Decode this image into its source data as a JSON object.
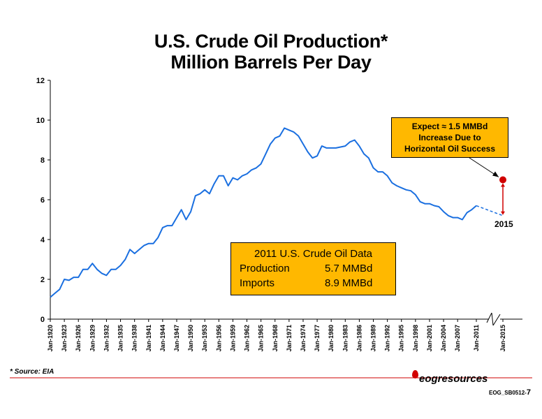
{
  "title_line1": "U.S. Crude Oil Production*",
  "title_line2": "Million Barrels Per Day",
  "chart_data": {
    "type": "line",
    "title": "U.S. Crude Oil Production* Million Barrels Per Day",
    "ylim": [
      0,
      12
    ],
    "yticks": [
      "0",
      "2",
      "4",
      "6",
      "8",
      "10",
      "12"
    ],
    "xtick_labels": [
      "Jan-1920",
      "Jan-1923",
      "Jan-1926",
      "Jan-1929",
      "Jan-1932",
      "Jan-1935",
      "Jan-1938",
      "Jan-1941",
      "Jan-1944",
      "Jan-1947",
      "Jan-1950",
      "Jan-1953",
      "Jan-1956",
      "Jan-1959",
      "Jan-1962",
      "Jan-1965",
      "Jan-1968",
      "Jan-1971",
      "Jan-1974",
      "Jan-1977",
      "Jan-1980",
      "Jan-1983",
      "Jan-1986",
      "Jan-1989",
      "Jan-1992",
      "Jan-1995",
      "Jan-1998",
      "Jan-2001",
      "Jan-2004",
      "Jan-2007",
      "Jan-2011",
      "Jan-2015"
    ],
    "series": [
      {
        "color": "#1a6fe0",
        "x": [
          1920,
          1921,
          1922,
          1923,
          1924,
          1925,
          1926,
          1927,
          1928,
          1929,
          1930,
          1931,
          1932,
          1933,
          1934,
          1935,
          1936,
          1937,
          1938,
          1939,
          1940,
          1941,
          1942,
          1943,
          1944,
          1945,
          1946,
          1947,
          1948,
          1949,
          1950,
          1951,
          1952,
          1953,
          1954,
          1955,
          1956,
          1957,
          1958,
          1959,
          1960,
          1961,
          1962,
          1963,
          1964,
          1965,
          1966,
          1967,
          1968,
          1969,
          1970,
          1971,
          1972,
          1973,
          1974,
          1975,
          1976,
          1977,
          1978,
          1979,
          1980,
          1981,
          1982,
          1983,
          1984,
          1985,
          1986,
          1987,
          1988,
          1989,
          1990,
          1991,
          1992,
          1993,
          1994,
          1995,
          1996,
          1997,
          1998,
          1999,
          2000,
          2001,
          2002,
          2003,
          2004,
          2005,
          2006,
          2007,
          2008,
          2009,
          2010,
          2011
        ],
        "values": [
          1.1,
          1.3,
          1.5,
          2.0,
          1.95,
          2.1,
          2.1,
          2.5,
          2.5,
          2.8,
          2.5,
          2.3,
          2.2,
          2.5,
          2.5,
          2.7,
          3.0,
          3.5,
          3.3,
          3.5,
          3.7,
          3.8,
          3.8,
          4.1,
          4.6,
          4.7,
          4.7,
          5.1,
          5.5,
          5.0,
          5.4,
          6.2,
          6.3,
          6.5,
          6.3,
          6.8,
          7.2,
          7.2,
          6.7,
          7.1,
          7.0,
          7.2,
          7.3,
          7.5,
          7.6,
          7.8,
          8.3,
          8.8,
          9.1,
          9.2,
          9.6,
          9.5,
          9.4,
          9.2,
          8.8,
          8.4,
          8.1,
          8.2,
          8.7,
          8.6,
          8.6,
          8.6,
          8.65,
          8.7,
          8.9,
          9.0,
          8.7,
          8.3,
          8.1,
          7.6,
          7.4,
          7.4,
          7.2,
          6.85,
          6.7,
          6.6,
          6.5,
          6.45,
          6.25,
          5.9,
          5.8,
          5.8,
          5.7,
          5.65,
          5.4,
          5.2,
          5.1,
          5.1,
          5.0,
          5.35,
          5.5,
          5.7
        ]
      }
    ],
    "projection": {
      "x": [
        2011,
        2015
      ],
      "values": [
        5.7,
        5.2
      ],
      "style": "dashed",
      "color": "#1a6fe0"
    },
    "target_point": {
      "x": 2015,
      "value": 7.0,
      "color": "#d00000"
    }
  },
  "callout_expect": {
    "line1": "Expect ≈ 1.5 MMBd",
    "line2": "Increase Due to",
    "line3": "Horizontal Oil Success"
  },
  "label_2015": "2015",
  "data_box": {
    "heading": "2011 U.S. Crude Oil Data",
    "rows": [
      {
        "label": "Production",
        "value": "5.7 MMBd"
      },
      {
        "label": "Imports",
        "value": "8.9 MMBd"
      }
    ]
  },
  "source_note": "* Source: EIA",
  "logo_text": "eogresources",
  "doc_id_prefix": "EOG_SB0512-",
  "doc_id_page": "7",
  "colors": {
    "callout_fill": "#ffb800",
    "line": "#1a6fe0",
    "target": "#d00000",
    "footer_rule": "#d00000"
  }
}
